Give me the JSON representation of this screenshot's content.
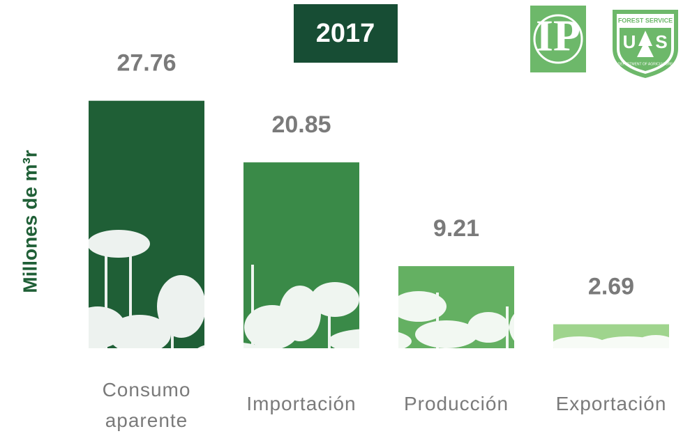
{
  "chart_data": {
    "type": "bar",
    "title": "2017",
    "y_label": "Millones de m³r",
    "categories": [
      "Consumo aparente",
      "Importación",
      "Producción",
      "Exportación"
    ],
    "values": [
      27.76,
      20.85,
      9.21,
      2.69
    ],
    "colors": [
      "#1f5f36",
      "#3a8a48",
      "#64b062",
      "#9fd48d"
    ]
  },
  "logos": {
    "ip": "IP",
    "usfs_top": "FOREST SERVICE",
    "usfs_left": "U",
    "usfs_right": "S",
    "usfs_bottom": "DEPARTMENT OF AGRICULTURE"
  }
}
